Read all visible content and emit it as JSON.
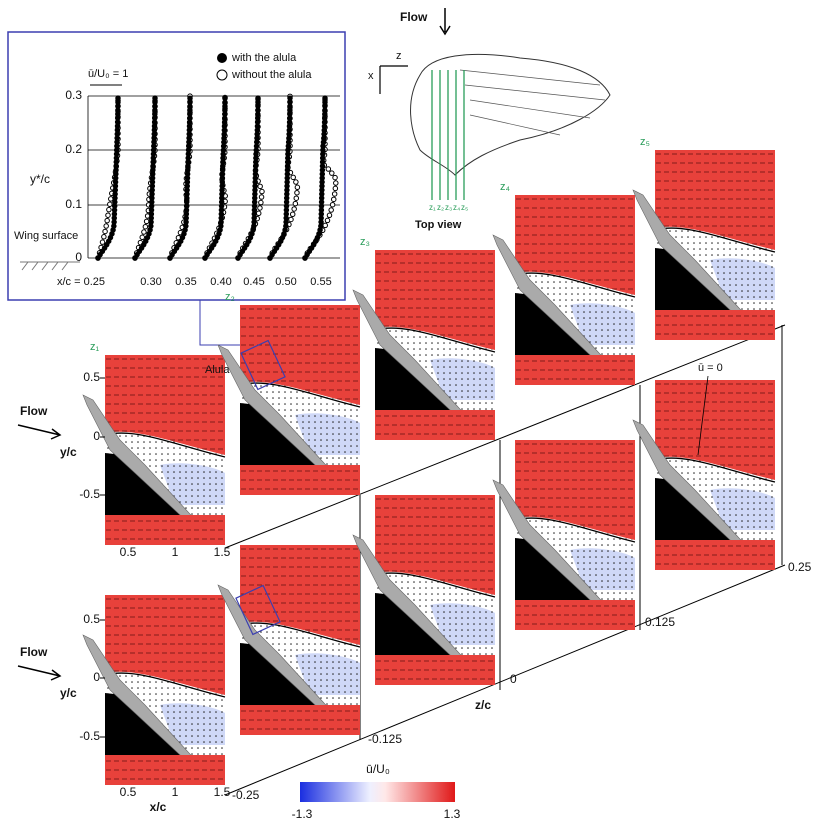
{
  "inset": {
    "legend": [
      "with the alula",
      "without the alula"
    ],
    "reference": "ū/U₀ = 1",
    "y_label": "y*/c",
    "y_ticks": [
      "0.3",
      "0.2",
      "0.1",
      "0"
    ],
    "wall_label": "Wing surface",
    "x_labels": [
      "x/c = 0.25",
      "0.30",
      "0.35",
      "0.40",
      "0.45",
      "0.50",
      "0.55"
    ]
  },
  "top_view": {
    "flow": "Flow",
    "axis_z": "z",
    "axis_x": "x",
    "stations": [
      "z₁",
      "z₂",
      "z₃",
      "z₄",
      "z₅"
    ],
    "caption": "Top view"
  },
  "panels": {
    "station_labels": [
      "z₁",
      "z₂",
      "z₃",
      "z₄",
      "z₅"
    ],
    "alula_label": "Alula",
    "zero_contour": "ū = 0"
  },
  "rows": [
    {
      "flow": "Flow",
      "y_label": "y/c",
      "y_ticks": [
        "0.5",
        "0",
        "-0.5"
      ],
      "x_ticks": [
        "0.5",
        "1",
        "1.5"
      ]
    },
    {
      "flow": "Flow",
      "y_label": "y/c",
      "y_ticks": [
        "0.5",
        "0",
        "-0.5"
      ],
      "x_ticks": [
        "0.5",
        "1",
        "1.5"
      ],
      "x_label": "x/c"
    }
  ],
  "z_axis": {
    "label": "z/c",
    "ticks": [
      "0.25",
      "0.125",
      "0",
      "-0.125",
      "-0.25"
    ]
  },
  "colorbar": {
    "label": "ū/U₀",
    "min": "-1.3",
    "max": "1.3"
  }
}
